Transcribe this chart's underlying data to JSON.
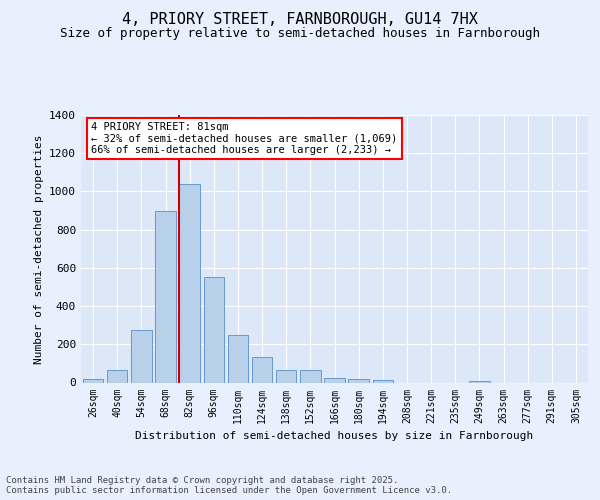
{
  "title": "4, PRIORY STREET, FARNBOROUGH, GU14 7HX",
  "subtitle": "Size of property relative to semi-detached houses in Farnborough",
  "xlabel": "Distribution of semi-detached houses by size in Farnborough",
  "ylabel": "Number of semi-detached properties",
  "categories": [
    "26sqm",
    "40sqm",
    "54sqm",
    "68sqm",
    "82sqm",
    "96sqm",
    "110sqm",
    "124sqm",
    "138sqm",
    "152sqm",
    "166sqm",
    "180sqm",
    "194sqm",
    "208sqm",
    "221sqm",
    "235sqm",
    "249sqm",
    "263sqm",
    "277sqm",
    "291sqm",
    "305sqm"
  ],
  "values": [
    18,
    65,
    275,
    900,
    1040,
    550,
    250,
    135,
    65,
    65,
    25,
    20,
    12,
    0,
    0,
    0,
    10,
    0,
    0,
    0,
    0
  ],
  "bar_color": "#b8d0ea",
  "bar_edge_color": "#6699cc",
  "highlight_index": 4,
  "highlight_color": "#cc0000",
  "annotation_text_line1": "4 PRIORY STREET: 81sqm",
  "annotation_text_line2": "← 32% of semi-detached houses are smaller (1,069)",
  "annotation_text_line3": "66% of semi-detached houses are larger (2,233) →",
  "ylim": [
    0,
    1400
  ],
  "yticks": [
    0,
    200,
    400,
    600,
    800,
    1000,
    1200,
    1400
  ],
  "footer_line1": "Contains HM Land Registry data © Crown copyright and database right 2025.",
  "footer_line2": "Contains public sector information licensed under the Open Government Licence v3.0.",
  "background_color": "#e8f0fe",
  "plot_bg_color": "#dce8f8",
  "title_fontsize": 11,
  "subtitle_fontsize": 9,
  "axis_label_fontsize": 8,
  "tick_fontsize": 8,
  "xtick_fontsize": 7,
  "annotation_fontsize": 7.5,
  "footer_fontsize": 6.5
}
